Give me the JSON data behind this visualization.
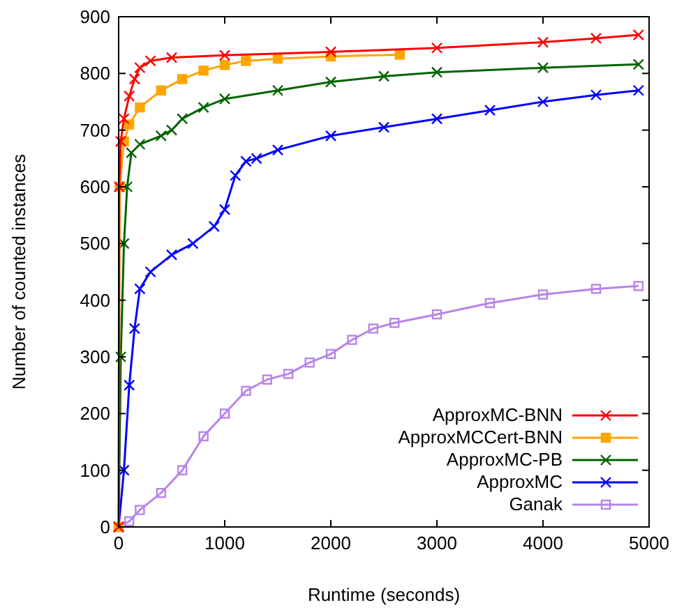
{
  "chart_data": {
    "type": "line",
    "xlabel": "Runtime (seconds)",
    "ylabel": "Number of counted instances",
    "xlim": [
      0,
      5000
    ],
    "ylim": [
      0,
      900
    ],
    "xticks": [
      0,
      1000,
      2000,
      3000,
      4000,
      5000
    ],
    "yticks": [
      0,
      100,
      200,
      300,
      400,
      500,
      600,
      700,
      800,
      900
    ],
    "grid": false,
    "legend": "bottom right",
    "series": [
      {
        "name": "ApproxMC-BNN",
        "color": "#ff0000",
        "marker": "cross",
        "x": [
          0,
          5,
          20,
          50,
          100,
          150,
          200,
          300,
          500,
          1000,
          2000,
          3000,
          4000,
          4500,
          4900
        ],
        "values": [
          0,
          600,
          680,
          720,
          760,
          790,
          810,
          822,
          828,
          832,
          838,
          845,
          855,
          862,
          868
        ]
      },
      {
        "name": "ApproxMCCert-BNN",
        "color": "#ffa500",
        "marker": "square",
        "x": [
          0,
          10,
          50,
          100,
          200,
          400,
          600,
          800,
          1000,
          1200,
          1500,
          2000,
          2650
        ],
        "values": [
          0,
          600,
          680,
          710,
          740,
          770,
          790,
          805,
          815,
          822,
          826,
          830,
          833
        ]
      },
      {
        "name": "ApproxMC-PB",
        "color": "#006400",
        "marker": "cross",
        "x": [
          0,
          20,
          50,
          80,
          120,
          200,
          400,
          500,
          600,
          800,
          1000,
          1500,
          2000,
          2500,
          3000,
          4000,
          4900
        ],
        "values": [
          0,
          300,
          500,
          600,
          660,
          675,
          690,
          700,
          720,
          740,
          755,
          770,
          785,
          795,
          802,
          810,
          816
        ]
      },
      {
        "name": "ApproxMC",
        "color": "#0000ff",
        "marker": "cross",
        "x": [
          0,
          50,
          100,
          150,
          200,
          300,
          500,
          700,
          900,
          1000,
          1100,
          1200,
          1300,
          1500,
          2000,
          2500,
          3000,
          3500,
          4000,
          4500,
          4900
        ],
        "values": [
          0,
          100,
          250,
          350,
          420,
          450,
          480,
          500,
          530,
          560,
          620,
          645,
          650,
          665,
          690,
          705,
          720,
          735,
          750,
          762,
          770
        ]
      },
      {
        "name": "Ganak",
        "color": "#b784e8",
        "marker": "square",
        "x": [
          0,
          100,
          200,
          400,
          600,
          800,
          1000,
          1200,
          1400,
          1600,
          1800,
          2000,
          2200,
          2400,
          2600,
          3000,
          3500,
          4000,
          4500,
          4900
        ],
        "values": [
          0,
          10,
          30,
          60,
          100,
          160,
          200,
          240,
          260,
          270,
          290,
          305,
          330,
          350,
          360,
          375,
          395,
          410,
          420,
          425
        ]
      }
    ]
  }
}
